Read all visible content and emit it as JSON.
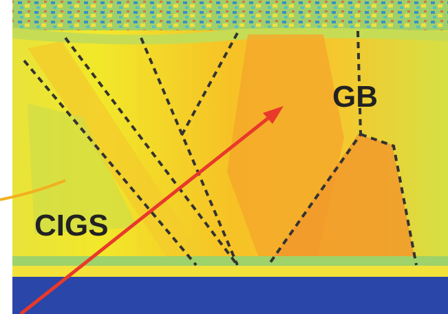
{
  "labels": {
    "gb": "GB",
    "cigs": "CIGS"
  }
}
